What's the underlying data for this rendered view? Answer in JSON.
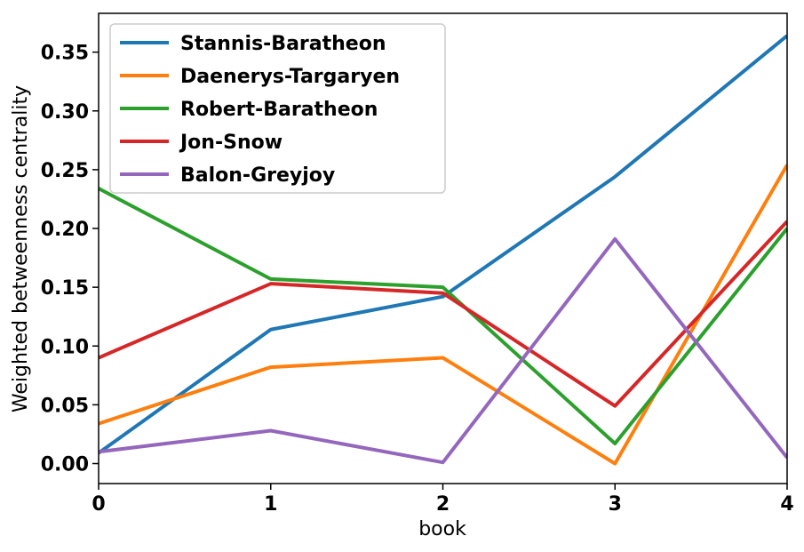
{
  "chart_data": {
    "type": "line",
    "title": "",
    "xlabel": "book",
    "ylabel": "Weighted betweenness centrality",
    "x": [
      0,
      1,
      2,
      3,
      4
    ],
    "xlim": [
      0,
      4
    ],
    "ylim": [
      -0.017,
      0.383
    ],
    "xticks": [
      0,
      1,
      2,
      3,
      4
    ],
    "yticks": [
      0.0,
      0.05,
      0.1,
      0.15,
      0.2,
      0.25,
      0.3,
      0.35
    ],
    "ytick_labels": [
      "0.00",
      "0.05",
      "0.10",
      "0.15",
      "0.20",
      "0.25",
      "0.30",
      "0.35"
    ],
    "xtick_labels": [
      "0",
      "1",
      "2",
      "3",
      "4"
    ],
    "grid": false,
    "legend_position": "upper-left",
    "series": [
      {
        "name": "Stannis-Baratheon",
        "color": "#1f77b4",
        "values": [
          0.009,
          0.114,
          0.142,
          0.244,
          0.364
        ]
      },
      {
        "name": "Daenerys-Targaryen",
        "color": "#ff7f0e",
        "values": [
          0.034,
          0.082,
          0.09,
          0.0,
          0.254
        ]
      },
      {
        "name": "Robert-Baratheon",
        "color": "#2ca02c",
        "values": [
          0.234,
          0.157,
          0.15,
          0.017,
          0.2
        ]
      },
      {
        "name": "Jon-Snow",
        "color": "#d62728",
        "values": [
          0.09,
          0.153,
          0.145,
          0.049,
          0.206
        ]
      },
      {
        "name": "Balon-Greyjoy",
        "color": "#9467bd",
        "values": [
          0.01,
          0.028,
          0.001,
          0.191,
          0.005
        ]
      }
    ]
  }
}
